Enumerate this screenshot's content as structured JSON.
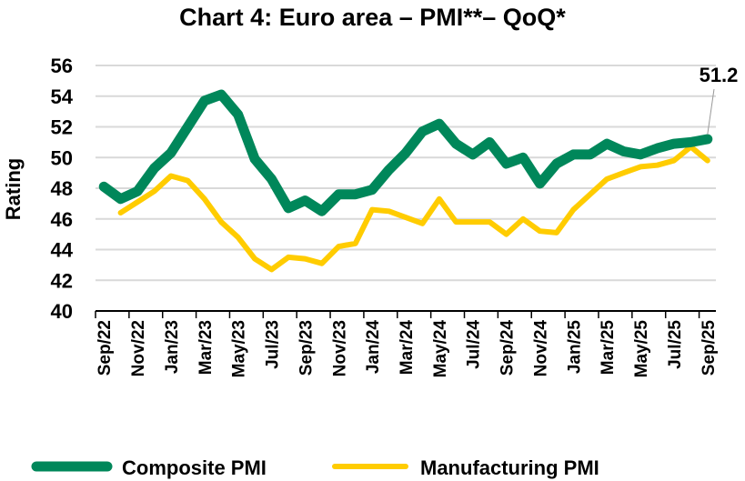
{
  "chart_data": {
    "type": "line",
    "title": "Chart 4: Euro area – PMI**– QoQ*",
    "ylabel": "Rating",
    "xlabel": "",
    "ylim": [
      40,
      56
    ],
    "yticks": [
      40,
      42,
      44,
      46,
      48,
      50,
      52,
      54,
      56
    ],
    "grid": true,
    "legend_placement": "bottom",
    "x": [
      "Sep/22",
      "Oct/22",
      "Nov/22",
      "Dec/22",
      "Jan/23",
      "Feb/23",
      "Mar/23",
      "Apr/23",
      "May/23",
      "Jun/23",
      "Jul/23",
      "Aug/23",
      "Sep/23",
      "Oct/23",
      "Nov/23",
      "Dec/23",
      "Jan/24",
      "Feb/24",
      "Mar/24",
      "Apr/24",
      "May/24",
      "Jun/24",
      "Jul/24",
      "Aug/24",
      "Sep/24",
      "Oct/24",
      "Nov/24",
      "Dec/24",
      "Jan/25",
      "Feb/25",
      "Mar/25",
      "Apr/25",
      "May/25",
      "Jun/25",
      "Jul/25",
      "Aug/25",
      "Sep/25"
    ],
    "xtick_labels": [
      "Sep/22",
      "Nov/22",
      "Jan/23",
      "Mar/23",
      "May/23",
      "Jul/23",
      "Sep/23",
      "Nov/23",
      "Jan/24",
      "Mar/24",
      "May/24",
      "Jul/24",
      "Sep/24",
      "Nov/24",
      "Jan/25",
      "Mar/25",
      "May/25",
      "Jul/25",
      "Sep/25"
    ],
    "series": [
      {
        "name": "Composite PMI",
        "color": "#00875a",
        "values": [
          48.1,
          47.3,
          47.8,
          49.3,
          50.3,
          52.0,
          53.7,
          54.1,
          52.8,
          49.9,
          48.6,
          46.7,
          47.2,
          46.5,
          47.6,
          47.6,
          47.9,
          49.2,
          50.3,
          51.7,
          52.2,
          50.9,
          50.2,
          51.0,
          49.6,
          50.0,
          48.3,
          49.6,
          50.2,
          50.2,
          50.9,
          50.4,
          50.2,
          50.6,
          50.9,
          51.0,
          51.2
        ]
      },
      {
        "name": "Manufacturing PMI",
        "color": "#ffcc00",
        "values": [
          null,
          46.4,
          47.1,
          47.8,
          48.8,
          48.5,
          47.3,
          45.8,
          44.8,
          43.4,
          42.7,
          43.5,
          43.4,
          43.1,
          44.2,
          44.4,
          46.6,
          46.5,
          46.1,
          45.7,
          47.3,
          45.8,
          45.8,
          45.8,
          45.0,
          46.0,
          45.2,
          45.1,
          46.6,
          47.6,
          48.6,
          49.0,
          49.4,
          49.5,
          49.8,
          50.7,
          49.8
        ]
      }
    ],
    "annotations": [
      {
        "text": "51.2",
        "series": "Composite PMI",
        "x": "Sep/25"
      }
    ]
  }
}
